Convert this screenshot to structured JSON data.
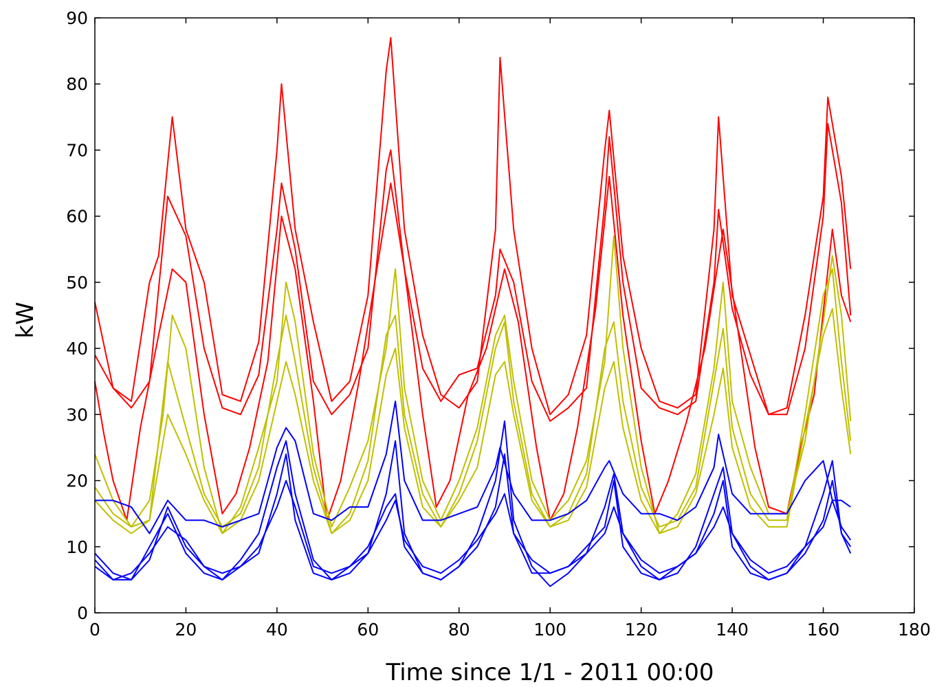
{
  "chart_data": {
    "type": "line",
    "title": "",
    "xlabel": "Time since 1/1 - 2011 00:00",
    "ylabel": "kW",
    "xlim": [
      0,
      180
    ],
    "ylim": [
      0,
      90
    ],
    "xticks": [
      0,
      20,
      40,
      60,
      80,
      100,
      120,
      140,
      160,
      180
    ],
    "yticks": [
      0,
      10,
      20,
      30,
      40,
      50,
      60,
      70,
      80,
      90
    ],
    "grid": false,
    "legend": "none",
    "series": [
      {
        "color": "#ff0000",
        "x": [
          0,
          4,
          8,
          12,
          14,
          17,
          20,
          24,
          28,
          32,
          36,
          40,
          41,
          44,
          48,
          52,
          56,
          60,
          64,
          65,
          68,
          72,
          76,
          80,
          84,
          88,
          89,
          92,
          96,
          100,
          104,
          108,
          112,
          113,
          116,
          120,
          124,
          128,
          132,
          136,
          137,
          140,
          144,
          148,
          152,
          156,
          160,
          161,
          164,
          166
        ],
        "y": [
          47,
          34,
          32,
          50,
          54,
          75,
          58,
          50,
          33,
          32,
          41,
          70,
          80,
          58,
          44,
          32,
          35,
          48,
          82,
          87,
          58,
          42,
          33,
          31,
          35,
          58,
          84,
          58,
          40,
          30,
          33,
          42,
          70,
          76,
          54,
          40,
          32,
          31,
          33,
          58,
          75,
          48,
          39,
          30,
          31,
          45,
          63,
          78,
          66,
          52
        ]
      },
      {
        "color": "#ff0000",
        "x": [
          0,
          4,
          8,
          12,
          16,
          20,
          24,
          28,
          32,
          36,
          40,
          41,
          44,
          48,
          52,
          56,
          60,
          64,
          65,
          68,
          72,
          76,
          80,
          84,
          88,
          89,
          92,
          96,
          100,
          104,
          108,
          112,
          113,
          116,
          120,
          124,
          128,
          132,
          136,
          137,
          140,
          144,
          148,
          152,
          156,
          160,
          161,
          164,
          166
        ],
        "y": [
          39,
          34,
          31,
          35,
          63,
          57,
          40,
          31,
          30,
          36,
          58,
          65,
          55,
          35,
          30,
          33,
          40,
          67,
          70,
          52,
          37,
          32,
          36,
          37,
          48,
          55,
          50,
          35,
          29,
          31,
          34,
          62,
          72,
          50,
          34,
          31,
          30,
          32,
          50,
          61,
          46,
          36,
          30,
          30,
          40,
          60,
          74,
          62,
          45
        ]
      },
      {
        "color": "#ff0000",
        "x": [
          0,
          2,
          4,
          7,
          10,
          14,
          17,
          20,
          24,
          28,
          31,
          34,
          38,
          41,
          44,
          48,
          51,
          54,
          58,
          61,
          65,
          68,
          72,
          75,
          78,
          82,
          86,
          90,
          93,
          97,
          100,
          103,
          106,
          110,
          113,
          116,
          120,
          123,
          126,
          130,
          134,
          138,
          141,
          145,
          148,
          152,
          155,
          158,
          162,
          164,
          166
        ],
        "y": [
          35,
          27,
          20,
          14,
          28,
          42,
          52,
          50,
          30,
          15,
          18,
          25,
          38,
          60,
          52,
          32,
          14,
          20,
          35,
          48,
          65,
          52,
          30,
          16,
          20,
          33,
          40,
          52,
          44,
          25,
          14,
          18,
          28,
          46,
          66,
          45,
          26,
          15,
          20,
          29,
          40,
          58,
          44,
          25,
          16,
          15,
          25,
          33,
          58,
          48,
          44
        ]
      },
      {
        "color": "#bfbf00",
        "x": [
          0,
          4,
          8,
          12,
          15,
          17,
          20,
          24,
          28,
          32,
          36,
          40,
          42,
          44,
          48,
          52,
          56,
          60,
          64,
          66,
          68,
          72,
          76,
          80,
          84,
          88,
          90,
          92,
          96,
          100,
          104,
          108,
          112,
          114,
          116,
          120,
          124,
          128,
          132,
          136,
          138,
          140,
          144,
          148,
          152,
          156,
          160,
          162,
          164,
          166
        ],
        "y": [
          24,
          17,
          13,
          17,
          30,
          45,
          40,
          22,
          12,
          16,
          25,
          35,
          50,
          44,
          24,
          13,
          19,
          26,
          40,
          52,
          34,
          20,
          14,
          20,
          28,
          42,
          45,
          35,
          20,
          14,
          17,
          23,
          38,
          57,
          40,
          22,
          12,
          15,
          21,
          37,
          50,
          32,
          22,
          15,
          15,
          26,
          44,
          54,
          45,
          29
        ]
      },
      {
        "color": "#bfbf00",
        "x": [
          0,
          4,
          8,
          12,
          16,
          20,
          24,
          28,
          32,
          36,
          40,
          42,
          44,
          48,
          52,
          56,
          60,
          64,
          66,
          68,
          72,
          76,
          80,
          84,
          88,
          90,
          92,
          96,
          100,
          104,
          108,
          112,
          114,
          116,
          120,
          124,
          128,
          132,
          136,
          138,
          140,
          144,
          148,
          152,
          156,
          160,
          162,
          164,
          166
        ],
        "y": [
          19,
          15,
          13,
          14,
          38,
          28,
          18,
          13,
          15,
          22,
          38,
          45,
          38,
          22,
          12,
          15,
          23,
          42,
          45,
          30,
          18,
          13,
          18,
          26,
          40,
          44,
          32,
          18,
          13,
          15,
          21,
          40,
          44,
          32,
          19,
          13,
          14,
          19,
          35,
          43,
          28,
          18,
          14,
          14,
          30,
          48,
          52,
          38,
          26
        ]
      },
      {
        "color": "#bfbf00",
        "x": [
          0,
          4,
          8,
          12,
          16,
          20,
          24,
          28,
          32,
          36,
          40,
          42,
          44,
          48,
          52,
          56,
          60,
          64,
          66,
          68,
          72,
          76,
          80,
          84,
          88,
          90,
          92,
          96,
          100,
          104,
          108,
          112,
          114,
          116,
          120,
          124,
          128,
          132,
          136,
          138,
          140,
          144,
          148,
          152,
          156,
          160,
          162,
          164,
          166
        ],
        "y": [
          17,
          14,
          12,
          14,
          30,
          24,
          17,
          12,
          14,
          20,
          32,
          38,
          33,
          20,
          12,
          14,
          20,
          36,
          40,
          28,
          16,
          13,
          17,
          22,
          36,
          38,
          30,
          17,
          13,
          14,
          19,
          34,
          38,
          28,
          17,
          12,
          13,
          18,
          30,
          37,
          25,
          16,
          13,
          13,
          28,
          42,
          46,
          34,
          24
        ]
      },
      {
        "color": "#0000ff",
        "x": [
          0,
          4,
          8,
          12,
          16,
          20,
          24,
          28,
          32,
          36,
          40,
          42,
          44,
          48,
          52,
          56,
          60,
          64,
          66,
          68,
          72,
          76,
          80,
          84,
          88,
          89,
          92,
          96,
          100,
          104,
          108,
          112,
          113,
          116,
          120,
          124,
          128,
          132,
          136,
          137,
          140,
          144,
          148,
          152,
          156,
          160,
          162,
          164,
          166
        ],
        "y": [
          17,
          17,
          16,
          12,
          17,
          14,
          14,
          13,
          14,
          15,
          25,
          28,
          26,
          15,
          14,
          16,
          16,
          24,
          32,
          20,
          14,
          14,
          15,
          16,
          22,
          25,
          18,
          14,
          14,
          15,
          17,
          22,
          23,
          18,
          15,
          15,
          14,
          16,
          22,
          27,
          18,
          15,
          15,
          15,
          20,
          23,
          17,
          17,
          16
        ]
      },
      {
        "color": "#0000ff",
        "x": [
          0,
          4,
          8,
          12,
          16,
          20,
          24,
          28,
          32,
          36,
          40,
          42,
          44,
          48,
          52,
          56,
          60,
          64,
          66,
          68,
          72,
          76,
          80,
          84,
          88,
          90,
          92,
          96,
          100,
          104,
          108,
          112,
          114,
          116,
          120,
          124,
          128,
          132,
          136,
          138,
          140,
          144,
          148,
          152,
          156,
          160,
          162,
          164,
          166
        ],
        "y": [
          9,
          6,
          5,
          8,
          16,
          10,
          7,
          5,
          8,
          12,
          22,
          26,
          18,
          8,
          5,
          6,
          9,
          18,
          26,
          12,
          6,
          5,
          7,
          12,
          20,
          29,
          14,
          7,
          4,
          6,
          9,
          16,
          21,
          12,
          7,
          5,
          6,
          10,
          18,
          22,
          12,
          7,
          5,
          6,
          10,
          18,
          23,
          12,
          10
        ]
      },
      {
        "color": "#0000ff",
        "x": [
          0,
          4,
          8,
          12,
          16,
          20,
          24,
          28,
          32,
          36,
          40,
          42,
          44,
          48,
          52,
          56,
          60,
          64,
          66,
          68,
          72,
          76,
          80,
          84,
          88,
          90,
          92,
          96,
          100,
          104,
          108,
          112,
          114,
          116,
          120,
          124,
          128,
          132,
          136,
          138,
          140,
          144,
          148,
          152,
          156,
          160,
          162,
          164,
          166
        ],
        "y": [
          8,
          5,
          5,
          10,
          15,
          9,
          6,
          5,
          7,
          9,
          18,
          24,
          14,
          6,
          5,
          7,
          10,
          16,
          18,
          10,
          6,
          5,
          7,
          10,
          16,
          24,
          12,
          6,
          6,
          7,
          10,
          13,
          20,
          10,
          6,
          5,
          7,
          9,
          15,
          20,
          10,
          6,
          5,
          6,
          9,
          14,
          20,
          12,
          9
        ]
      },
      {
        "color": "#0000ff",
        "x": [
          0,
          4,
          8,
          12,
          16,
          20,
          24,
          28,
          32,
          36,
          40,
          42,
          44,
          48,
          52,
          56,
          60,
          64,
          66,
          68,
          72,
          76,
          80,
          84,
          88,
          90,
          92,
          96,
          100,
          104,
          108,
          112,
          114,
          116,
          120,
          124,
          128,
          132,
          136,
          138,
          140,
          144,
          148,
          152,
          156,
          160,
          162,
          164,
          166
        ],
        "y": [
          7,
          5,
          6,
          9,
          13,
          11,
          7,
          6,
          7,
          10,
          16,
          20,
          16,
          7,
          6,
          7,
          9,
          14,
          17,
          11,
          7,
          6,
          8,
          11,
          15,
          18,
          12,
          8,
          6,
          7,
          9,
          12,
          16,
          12,
          8,
          6,
          7,
          9,
          13,
          16,
          12,
          8,
          6,
          7,
          10,
          13,
          17,
          13,
          11
        ]
      }
    ]
  }
}
